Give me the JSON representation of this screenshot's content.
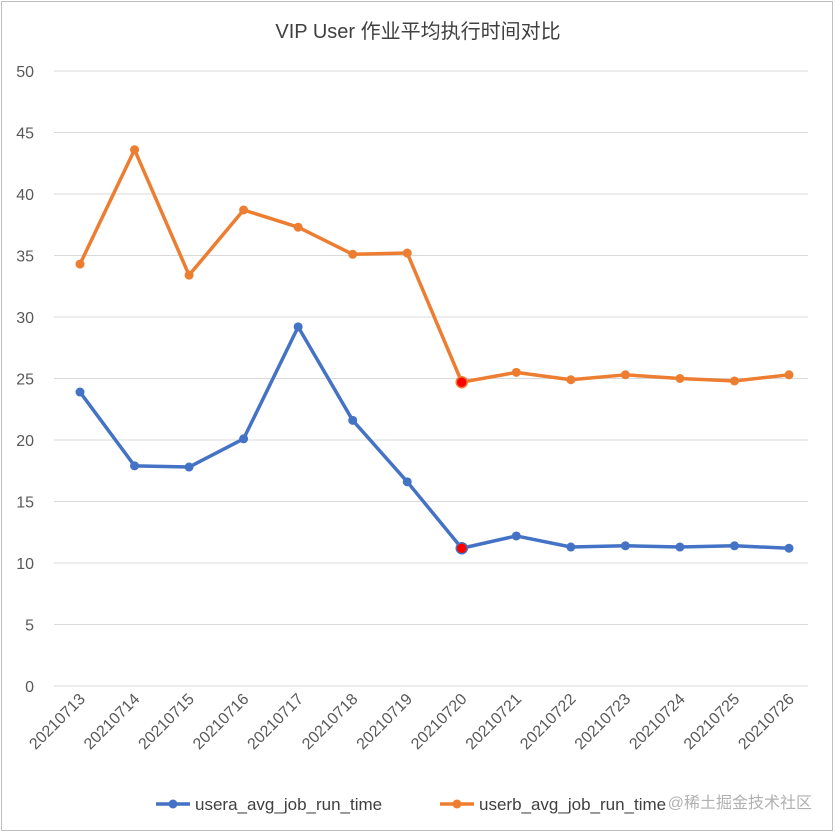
{
  "chart_data": {
    "type": "line",
    "title": "VIP User 作业平均执行时间对比",
    "categories": [
      "20210713",
      "20210714",
      "20210715",
      "20210716",
      "20210717",
      "20210718",
      "20210719",
      "20210720",
      "20210721",
      "20210722",
      "20210723",
      "20210724",
      "20210725",
      "20210726"
    ],
    "ylim": [
      0,
      50
    ],
    "yticks": [
      0,
      5,
      10,
      15,
      20,
      25,
      30,
      35,
      40,
      45,
      50
    ],
    "grid": true,
    "legend_position": "bottom",
    "highlight_index": 7,
    "series": [
      {
        "name": "usera_avg_job_run_time",
        "color": "#4472c4",
        "values": [
          23.9,
          17.9,
          17.8,
          20.1,
          29.2,
          21.6,
          16.6,
          11.2,
          12.2,
          11.3,
          11.4,
          11.3,
          11.4,
          11.2
        ]
      },
      {
        "name": "userb_avg_job_run_time",
        "color": "#ed7d31",
        "values": [
          34.3,
          43.6,
          33.4,
          38.7,
          37.3,
          35.1,
          35.2,
          24.7,
          25.5,
          24.9,
          25.3,
          25.0,
          24.8,
          25.3
        ]
      }
    ],
    "highlight_color": "#ff0000"
  },
  "watermark": "@稀土掘金技术社区"
}
